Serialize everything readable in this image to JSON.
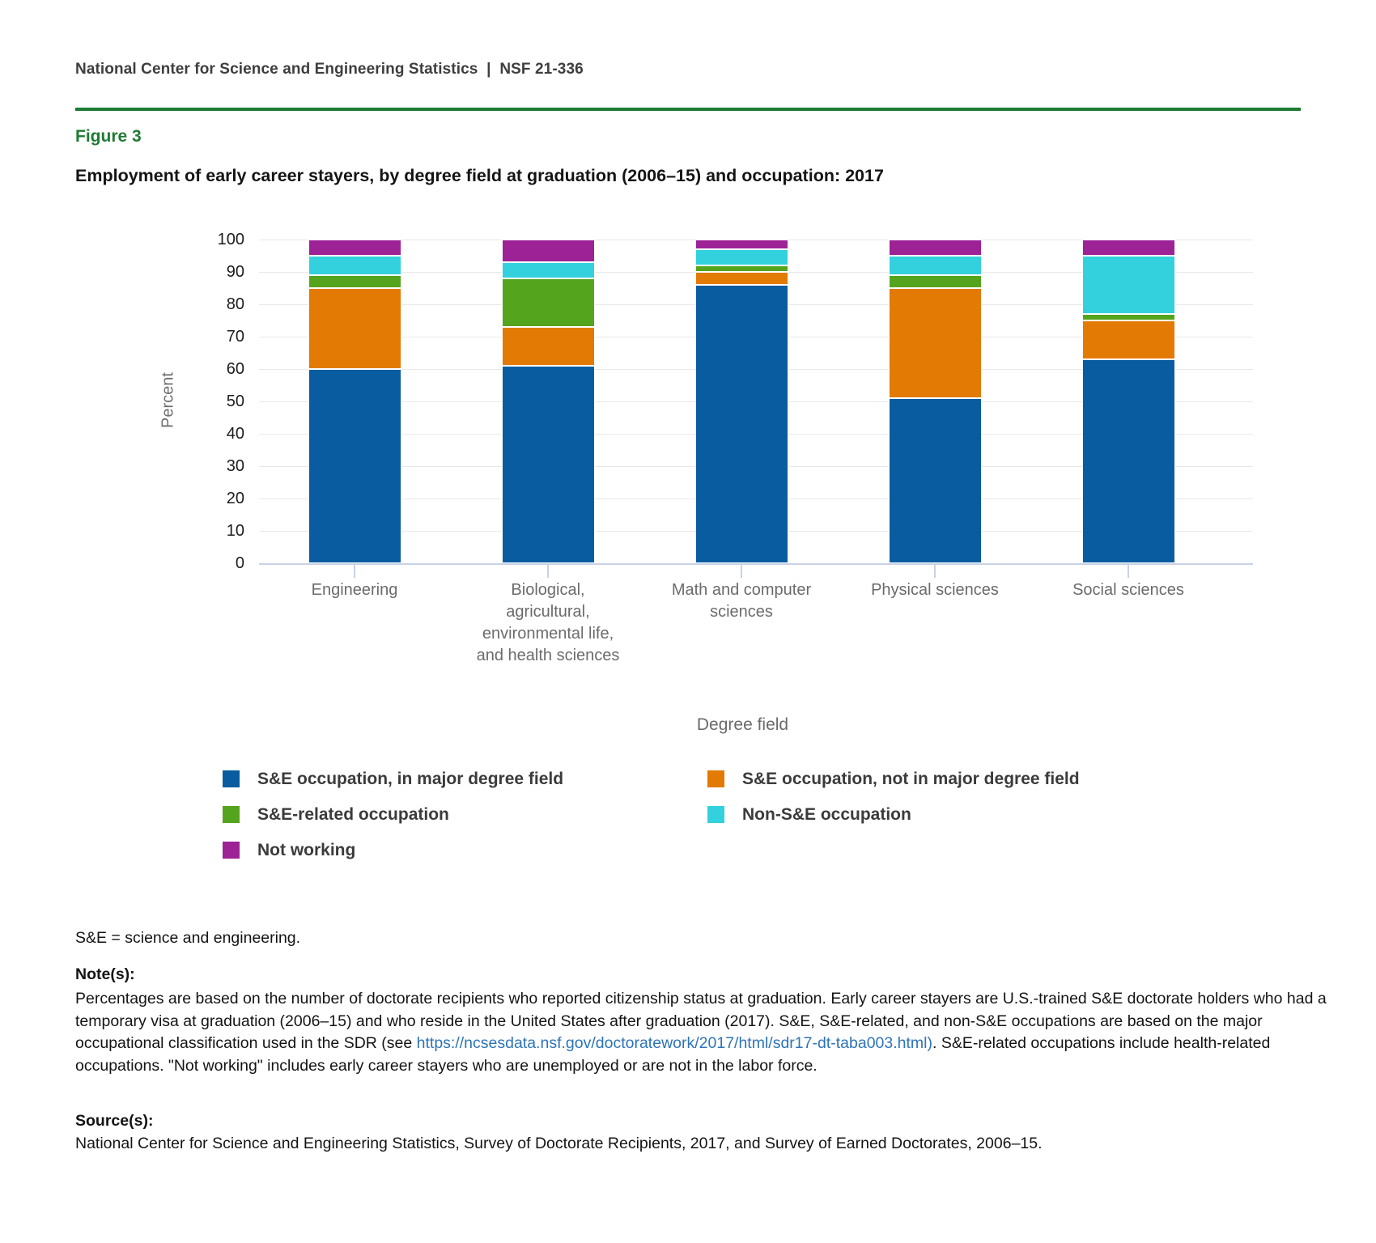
{
  "header": {
    "text": "National Center for Science and Engineering Statistics  |  NSF 21-336"
  },
  "figure": {
    "label": "Figure 3",
    "title": "Employment of early career stayers, by degree field at graduation (2006–15) and occupation: 2017"
  },
  "chart_data": {
    "type": "bar",
    "stacked": true,
    "title": "Employment of early career stayers, by degree field at graduation (2006–15) and occupation: 2017",
    "xlabel": "Degree field",
    "ylabel": "Percent",
    "ylim": [
      0,
      100
    ],
    "yticks": [
      0,
      10,
      20,
      30,
      40,
      50,
      60,
      70,
      80,
      90,
      100
    ],
    "grid": true,
    "legend_position": "bottom",
    "categories": [
      "Engineering",
      "Biological,\nagricultural,\nenvironmental life,\nand health sciences",
      "Math and computer\nsciences",
      "Physical sciences",
      "Social sciences"
    ],
    "series": [
      {
        "name": "S&E occupation, in major degree field",
        "color": "#095c9f",
        "values": [
          60,
          61,
          86,
          51,
          63
        ]
      },
      {
        "name": "S&E occupation, not in major degree field",
        "color": "#e27a04",
        "values": [
          25,
          12,
          4,
          34,
          12
        ]
      },
      {
        "name": "S&E-related occupation",
        "color": "#54a41d",
        "values": [
          4,
          15,
          2,
          4,
          2
        ]
      },
      {
        "name": "Non-S&E occupation",
        "color": "#33d1de",
        "values": [
          6,
          5,
          5,
          6,
          18
        ]
      },
      {
        "name": "Not working",
        "color": "#9d2296",
        "values": [
          5,
          7,
          3,
          5,
          5
        ]
      }
    ],
    "colors": {
      "accent_green": "#1e7b34",
      "axis_line": "#c9d2e6",
      "gridline": "#e8e8e8",
      "link_blue": "#2e74b8"
    }
  },
  "notes": {
    "abbrev": "S&E = science and engineering.",
    "notes_label": "Note(s):",
    "note_pre": "Percentages are based on the number of doctorate recipients who reported citizenship status at graduation. Early career stayers are U.S.-trained S&E doctorate holders who had a temporary visa at graduation (2006–15) and who reside in the United States after graduation (2017). S&E, S&E-related, and non-S&E occupations are based on the major occupational classification used in the SDR (see ",
    "link_text": "https://ncsesdata.nsf.gov/doctoratework/2017/html/sdr17-dt-taba003.html)",
    "note_post": ". S&E-related occupations include health-related occupations. \"Not working\" includes early career stayers who are unemployed or are not in the labor force.",
    "sources_label": "Source(s):",
    "source": "National Center for Science and Engineering Statistics, Survey of Doctorate Recipients, 2017, and Survey of Earned Doctorates, 2006–15."
  }
}
